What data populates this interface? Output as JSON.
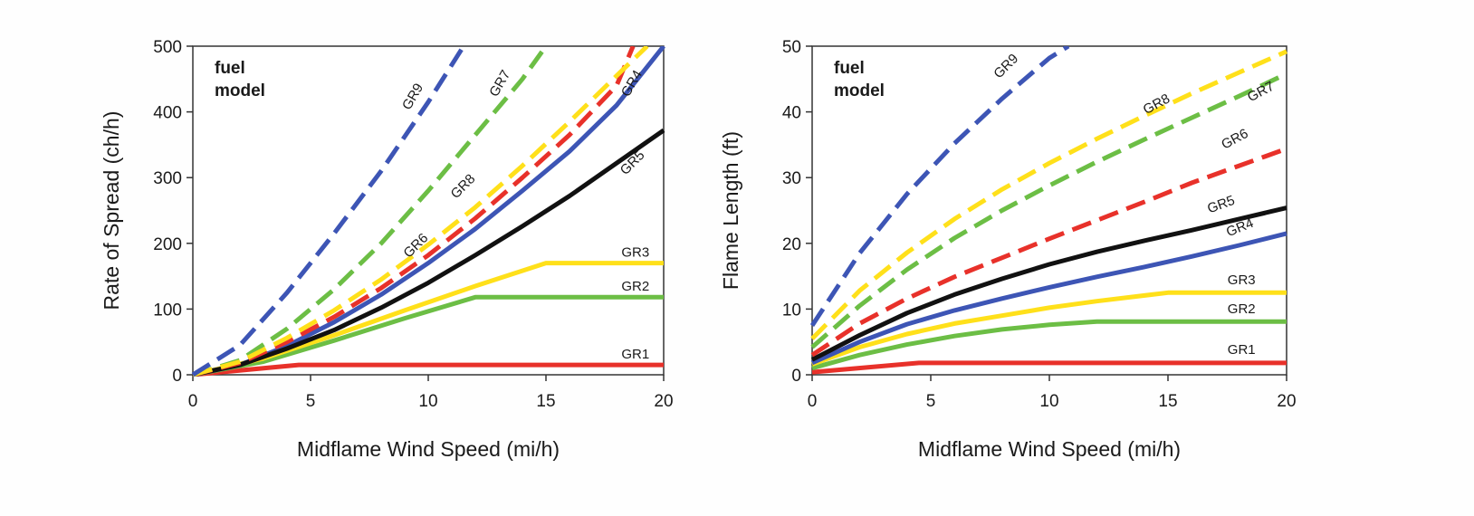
{
  "chart_data": [
    {
      "type": "line",
      "xlabel": "Midflame Wind Speed (mi/h)",
      "ylabel": "Rate of Spread (ch/h)",
      "legend_title": [
        "fuel",
        "model"
      ],
      "legend_placement": "top-left",
      "grid": false,
      "xlim": [
        0,
        20
      ],
      "ylim": [
        0,
        500
      ],
      "xticks": [
        "0",
        "5",
        "10",
        "15",
        "20"
      ],
      "yticks": [
        "0",
        "100",
        "200",
        "300",
        "400",
        "500"
      ],
      "series": [
        {
          "name": "GR1",
          "color": "#e8312a",
          "dashed": false,
          "x": [
            0,
            4.5,
            20
          ],
          "y": [
            0,
            15,
            15
          ]
        },
        {
          "name": "GR2",
          "color": "#6cbe45",
          "dashed": false,
          "x": [
            0,
            3,
            6,
            9,
            12,
            20
          ],
          "y": [
            0,
            20,
            52,
            86,
            118,
            118
          ]
        },
        {
          "name": "GR3",
          "color": "#ffe01a",
          "dashed": false,
          "x": [
            0,
            3,
            6,
            9,
            12,
            15,
            20
          ],
          "y": [
            0,
            25,
            60,
            98,
            135,
            170,
            170
          ]
        },
        {
          "name": "GR4",
          "color": "#3d55b5",
          "dashed": false,
          "x": [
            0,
            2,
            4,
            6,
            8,
            10,
            12,
            14,
            16,
            18,
            20
          ],
          "y": [
            0,
            15,
            44,
            80,
            122,
            170,
            222,
            280,
            340,
            410,
            500
          ]
        },
        {
          "name": "GR5",
          "color": "#111111",
          "dashed": false,
          "x": [
            0,
            2,
            4,
            6,
            8,
            10,
            12,
            14,
            16,
            18,
            20
          ],
          "y": [
            0,
            15,
            40,
            68,
            102,
            140,
            182,
            226,
            272,
            322,
            372
          ]
        },
        {
          "name": "GR6",
          "color": "#e8312a",
          "dashed": true,
          "x": [
            0,
            2,
            4,
            6,
            8,
            10,
            12,
            14,
            16,
            18,
            18.7
          ],
          "y": [
            0,
            18,
            50,
            88,
            132,
            182,
            238,
            300,
            365,
            440,
            500
          ]
        },
        {
          "name": "GR7",
          "color": "#6cbe45",
          "dashed": true,
          "x": [
            0,
            2,
            4,
            6,
            8,
            10,
            12,
            14,
            15
          ],
          "y": [
            0,
            22,
            70,
            130,
            200,
            280,
            365,
            450,
            500
          ]
        },
        {
          "name": "GR8",
          "color": "#ffe01a",
          "dashed": true,
          "x": [
            0,
            2,
            4,
            6,
            8,
            10,
            12,
            14,
            16,
            18,
            19.3
          ],
          "y": [
            0,
            20,
            56,
            98,
            145,
            198,
            255,
            318,
            385,
            455,
            500
          ]
        },
        {
          "name": "GR9",
          "color": "#3d55b5",
          "dashed": true,
          "x": [
            0,
            2,
            4,
            6,
            8,
            10,
            11.5
          ],
          "y": [
            0,
            45,
            125,
            215,
            310,
            415,
            500
          ]
        }
      ]
    },
    {
      "type": "line",
      "xlabel": "Midflame Wind Speed (mi/h)",
      "ylabel": "Flame Length (ft)",
      "legend_title": [
        "fuel",
        "model"
      ],
      "legend_placement": "top-left",
      "grid": false,
      "xlim": [
        0,
        20
      ],
      "ylim": [
        0,
        50
      ],
      "xticks": [
        "0",
        "5",
        "10",
        "15",
        "20"
      ],
      "yticks": [
        "0",
        "10",
        "20",
        "30",
        "40",
        "50"
      ],
      "series": [
        {
          "name": "GR1",
          "color": "#e8312a",
          "dashed": false,
          "x": [
            0,
            4.5,
            20
          ],
          "y": [
            0.4,
            1.8,
            1.8
          ]
        },
        {
          "name": "GR2",
          "color": "#6cbe45",
          "dashed": false,
          "x": [
            0,
            2,
            4,
            6,
            8,
            10,
            12,
            20
          ],
          "y": [
            1,
            3,
            4.6,
            5.9,
            6.9,
            7.6,
            8.1,
            8.1
          ]
        },
        {
          "name": "GR3",
          "color": "#ffe01a",
          "dashed": false,
          "x": [
            0,
            2,
            4,
            6,
            8,
            10,
            12,
            15,
            20
          ],
          "y": [
            1.6,
            4.2,
            6.2,
            7.8,
            9,
            10.2,
            11.2,
            12.5,
            12.5
          ]
        },
        {
          "name": "GR4",
          "color": "#3d55b5",
          "dashed": false,
          "x": [
            0,
            2,
            4,
            6,
            8,
            10,
            12,
            14,
            16,
            18,
            20
          ],
          "y": [
            1.8,
            5,
            7.7,
            9.8,
            11.6,
            13.3,
            14.9,
            16.4,
            18,
            19.7,
            21.5
          ]
        },
        {
          "name": "GR5",
          "color": "#111111",
          "dashed": false,
          "x": [
            0,
            2,
            4,
            6,
            8,
            10,
            12,
            14,
            16,
            18,
            20
          ],
          "y": [
            2.3,
            6,
            9.4,
            12.2,
            14.6,
            16.8,
            18.7,
            20.4,
            22,
            23.7,
            25.4
          ]
        },
        {
          "name": "GR6",
          "color": "#e8312a",
          "dashed": true,
          "x": [
            0,
            2,
            4,
            6,
            8,
            10,
            12,
            14,
            16,
            18,
            20
          ],
          "y": [
            3,
            7.8,
            11.6,
            14.9,
            17.8,
            20.7,
            23.5,
            26.3,
            29.2,
            31.8,
            34.4
          ]
        },
        {
          "name": "GR7",
          "color": "#6cbe45",
          "dashed": true,
          "x": [
            0,
            2,
            4,
            6,
            8,
            10,
            12,
            14,
            16,
            18,
            20
          ],
          "y": [
            4.2,
            10.5,
            16,
            20.8,
            25,
            28.8,
            32.4,
            35.8,
            39.1,
            42.4,
            45.8
          ]
        },
        {
          "name": "GR8",
          "color": "#ffe01a",
          "dashed": true,
          "x": [
            0,
            2,
            4,
            6,
            8,
            10,
            12,
            14,
            16,
            18,
            20
          ],
          "y": [
            5.5,
            12.8,
            18.6,
            23.7,
            28.2,
            32.2,
            35.9,
            39.4,
            42.8,
            46,
            49.2
          ]
        },
        {
          "name": "GR9",
          "color": "#3d55b5",
          "dashed": true,
          "x": [
            0,
            2,
            4,
            6,
            8,
            10,
            10.8
          ],
          "y": [
            7.5,
            18.5,
            27.5,
            35.2,
            42,
            48.2,
            50
          ]
        }
      ]
    }
  ]
}
